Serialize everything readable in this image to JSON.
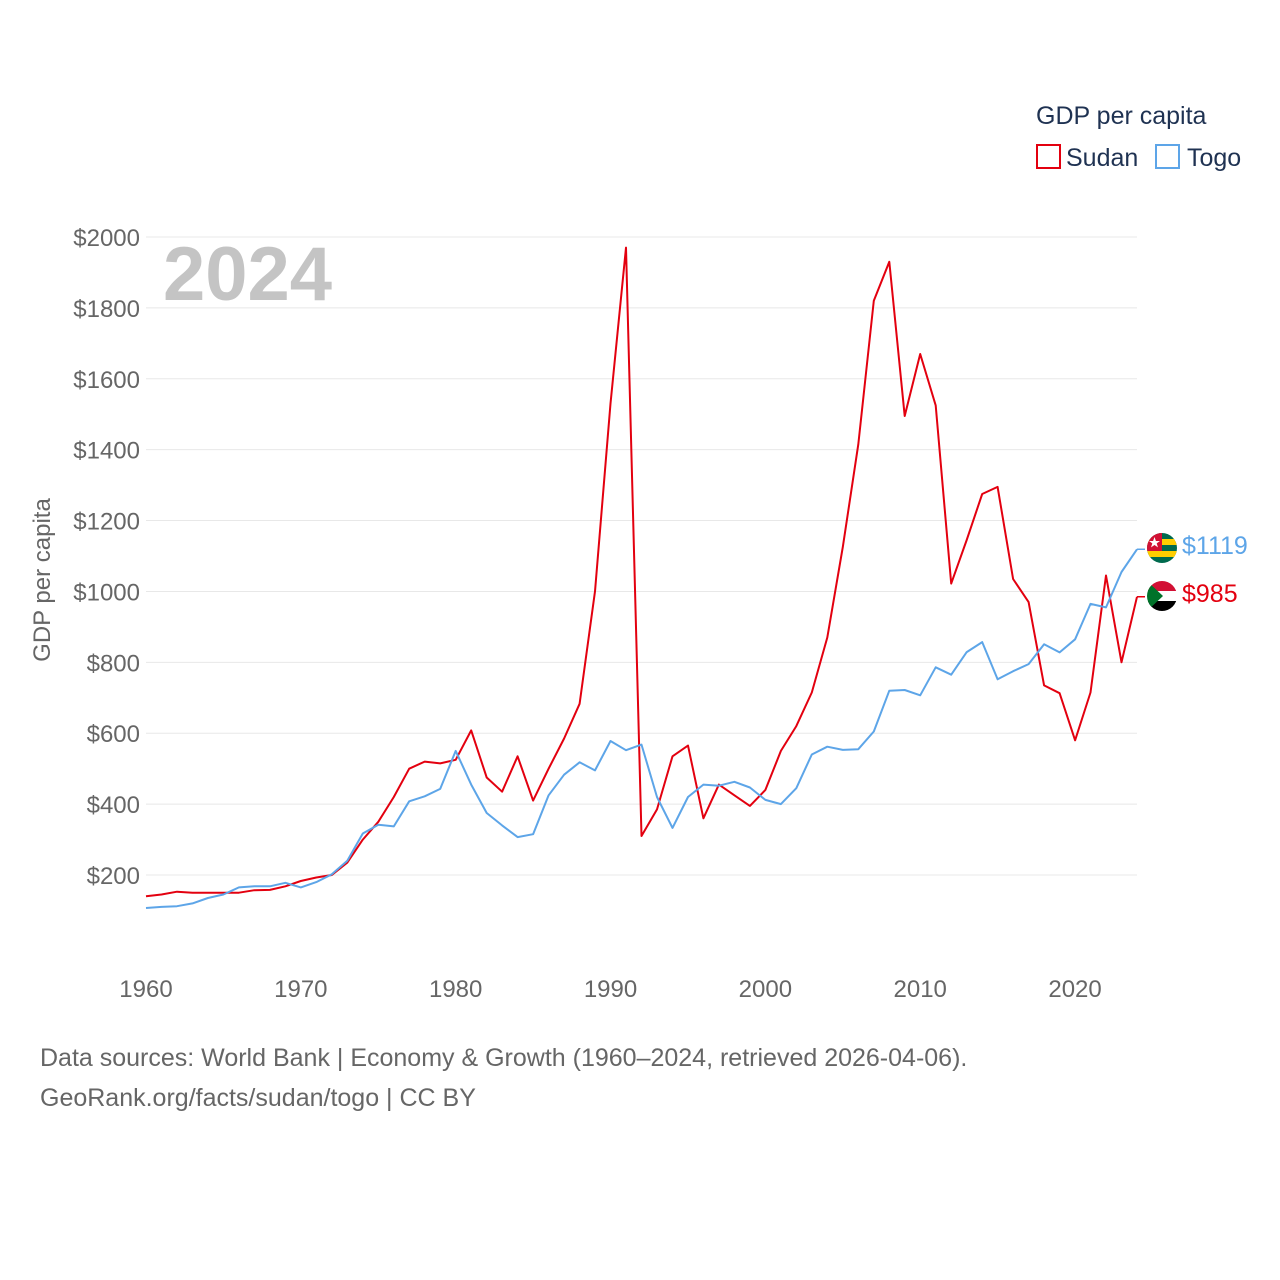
{
  "chart_data": {
    "type": "line",
    "year_label": "2024",
    "ylabel": "GDP per capita",
    "legend_title": "GDP per capita",
    "xlim": [
      1960,
      2024
    ],
    "ylim": [
      0,
      2000
    ],
    "x_ticks": [
      1960,
      1970,
      1980,
      1990,
      2000,
      2010,
      2020
    ],
    "x_tick_labels": [
      "1960",
      "1970",
      "1980",
      "1990",
      "2000",
      "2010",
      "2020"
    ],
    "y_ticks": [
      200,
      400,
      600,
      800,
      1000,
      1200,
      1400,
      1600,
      1800,
      2000
    ],
    "y_tick_labels": [
      "$200",
      "$400",
      "$600",
      "$800",
      "$1000",
      "$1200",
      "$1400",
      "$1600",
      "$1800",
      "$2000"
    ],
    "x": [
      1960,
      1961,
      1962,
      1963,
      1964,
      1965,
      1966,
      1967,
      1968,
      1969,
      1970,
      1971,
      1972,
      1973,
      1974,
      1975,
      1976,
      1977,
      1978,
      1979,
      1980,
      1981,
      1982,
      1983,
      1984,
      1985,
      1986,
      1987,
      1988,
      1989,
      1990,
      1991,
      1992,
      1993,
      1994,
      1995,
      1996,
      1997,
      1998,
      1999,
      2000,
      2001,
      2002,
      2003,
      2004,
      2005,
      2006,
      2007,
      2008,
      2009,
      2010,
      2011,
      2012,
      2013,
      2014,
      2015,
      2016,
      2017,
      2018,
      2019,
      2020,
      2021,
      2022,
      2023,
      2024
    ],
    "series": [
      {
        "name": "Sudan",
        "color": "#e3000f",
        "end_label": "$985",
        "flag": "sudan-flag-icon",
        "values": [
          140,
          145,
          153,
          150,
          150,
          150,
          150,
          157,
          158,
          168,
          183,
          193,
          200,
          235,
          300,
          350,
          420,
          500,
          520,
          515,
          525,
          608,
          475,
          435,
          535,
          410,
          500,
          585,
          683,
          1000,
          1530,
          1970,
          310,
          385,
          535,
          565,
          360,
          455,
          425,
          395,
          440,
          550,
          620,
          715,
          870,
          1125,
          1415,
          1820,
          1930,
          1495,
          1670,
          1525,
          1022,
          1145,
          1275,
          1295,
          1035,
          970,
          735,
          713,
          580,
          715,
          1045,
          800,
          985
        ]
      },
      {
        "name": "Togo",
        "color": "#5da5e8",
        "end_label": "$1119",
        "flag": "togo-flag-icon",
        "values": [
          107,
          110,
          112,
          120,
          135,
          145,
          165,
          168,
          168,
          178,
          165,
          180,
          202,
          240,
          317,
          342,
          337,
          408,
          422,
          443,
          550,
          455,
          375,
          340,
          307,
          315,
          425,
          483,
          518,
          495,
          578,
          552,
          568,
          420,
          333,
          420,
          455,
          452,
          463,
          447,
          412,
          400,
          445,
          540,
          562,
          553,
          555,
          605,
          720,
          722,
          707,
          786,
          765,
          829,
          857,
          752,
          775,
          795,
          851,
          828,
          865,
          965,
          955,
          1055,
          1119
        ]
      }
    ]
  },
  "footer": {
    "line1": "Data sources: World Bank | Economy & Growth (1960–2024, retrieved 2026-04-06).",
    "line2": "GeoRank.org/facts/sudan/togo | CC BY"
  }
}
